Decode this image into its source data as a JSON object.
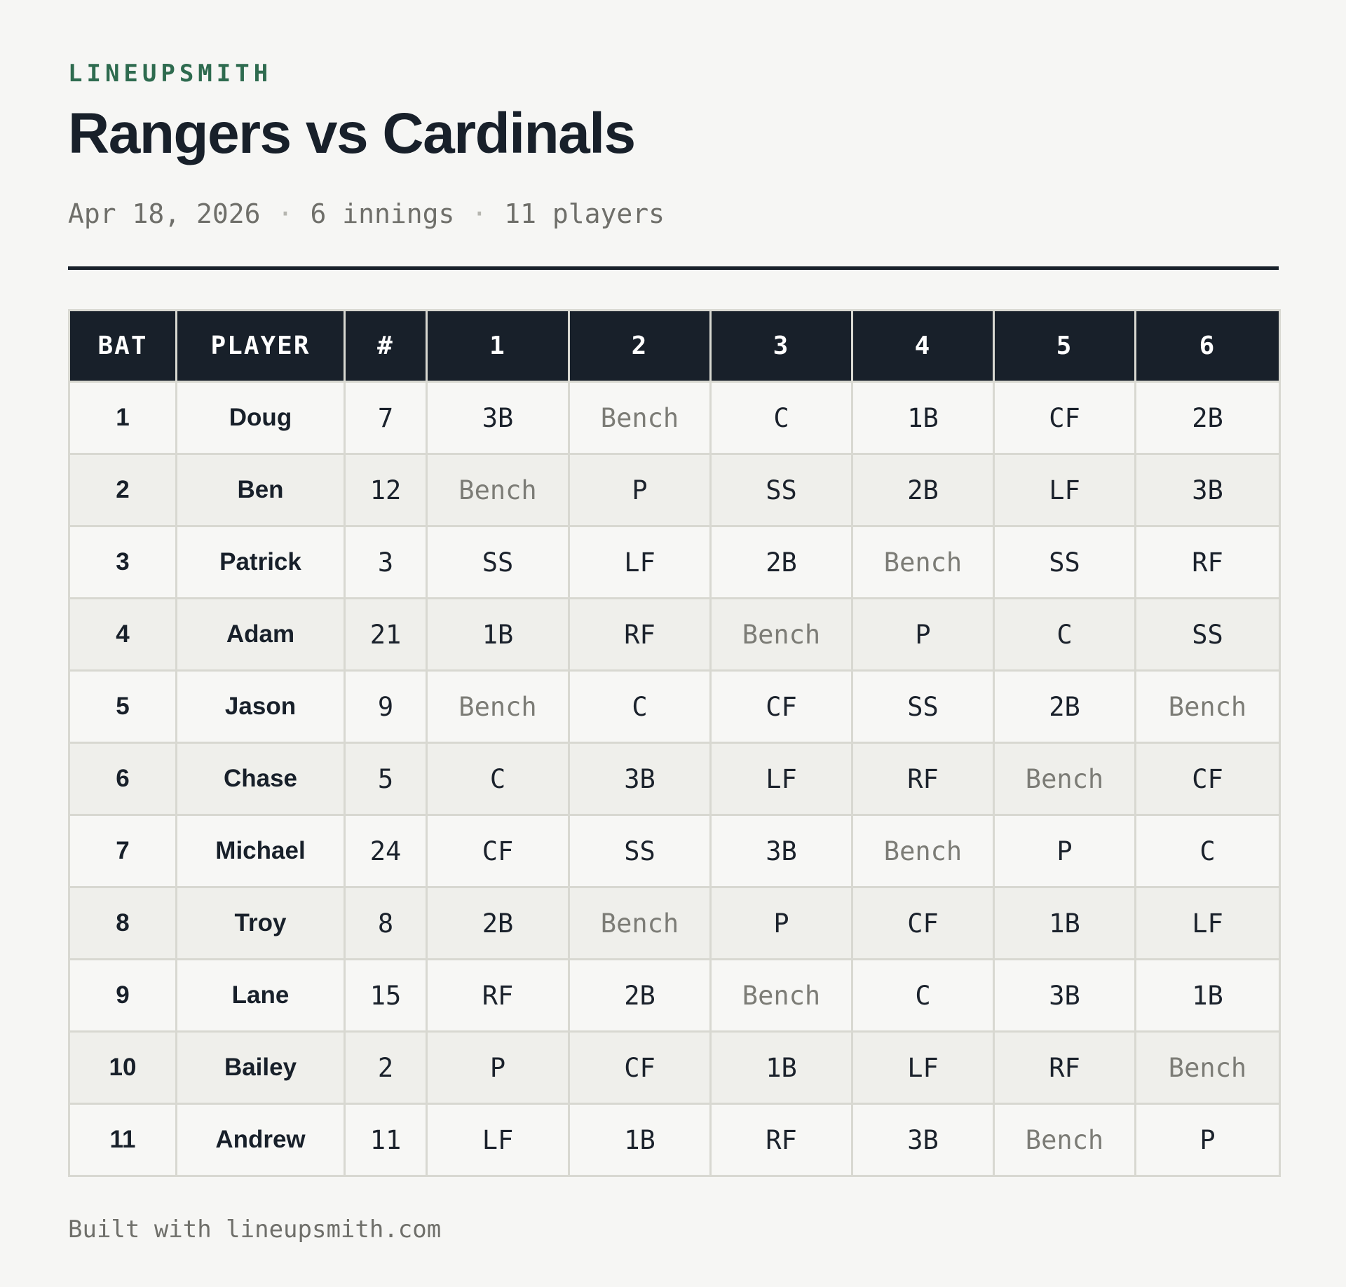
{
  "brand": "LINEUPSMITH",
  "title": "Rangers vs Cardinals",
  "meta": {
    "date": "Apr 18, 2026",
    "separator": "·",
    "innings": "6 innings",
    "players": "11 players"
  },
  "table": {
    "headers": [
      "BAT",
      "PLAYER",
      "#",
      "1",
      "2",
      "3",
      "4",
      "5",
      "6"
    ],
    "bench_label": "Bench",
    "rows": [
      {
        "bat": "1",
        "player": "Doug",
        "number": "7",
        "innings": [
          "3B",
          "Bench",
          "C",
          "1B",
          "CF",
          "2B"
        ]
      },
      {
        "bat": "2",
        "player": "Ben",
        "number": "12",
        "innings": [
          "Bench",
          "P",
          "SS",
          "2B",
          "LF",
          "3B"
        ]
      },
      {
        "bat": "3",
        "player": "Patrick",
        "number": "3",
        "innings": [
          "SS",
          "LF",
          "2B",
          "Bench",
          "SS",
          "RF"
        ]
      },
      {
        "bat": "4",
        "player": "Adam",
        "number": "21",
        "innings": [
          "1B",
          "RF",
          "Bench",
          "P",
          "C",
          "SS"
        ]
      },
      {
        "bat": "5",
        "player": "Jason",
        "number": "9",
        "innings": [
          "Bench",
          "C",
          "CF",
          "SS",
          "2B",
          "Bench"
        ]
      },
      {
        "bat": "6",
        "player": "Chase",
        "number": "5",
        "innings": [
          "C",
          "3B",
          "LF",
          "RF",
          "Bench",
          "CF"
        ]
      },
      {
        "bat": "7",
        "player": "Michael",
        "number": "24",
        "innings": [
          "CF",
          "SS",
          "3B",
          "Bench",
          "P",
          "C"
        ]
      },
      {
        "bat": "8",
        "player": "Troy",
        "number": "8",
        "innings": [
          "2B",
          "Bench",
          "P",
          "CF",
          "1B",
          "LF"
        ]
      },
      {
        "bat": "9",
        "player": "Lane",
        "number": "15",
        "innings": [
          "RF",
          "2B",
          "Bench",
          "C",
          "3B",
          "1B"
        ]
      },
      {
        "bat": "10",
        "player": "Bailey",
        "number": "2",
        "innings": [
          "P",
          "CF",
          "1B",
          "LF",
          "RF",
          "Bench"
        ]
      },
      {
        "bat": "11",
        "player": "Andrew",
        "number": "11",
        "innings": [
          "LF",
          "1B",
          "RF",
          "3B",
          "Bench",
          "P"
        ]
      }
    ]
  },
  "footer": "Built with lineupsmith.com",
  "colors": {
    "brand_green": "#2e6b4f",
    "header_bg": "#18202a",
    "page_bg": "#f6f6f4",
    "row_alt_bg": "#efefeb",
    "bench_text": "#7c7c76",
    "grid_border": "#d8d8d1"
  }
}
